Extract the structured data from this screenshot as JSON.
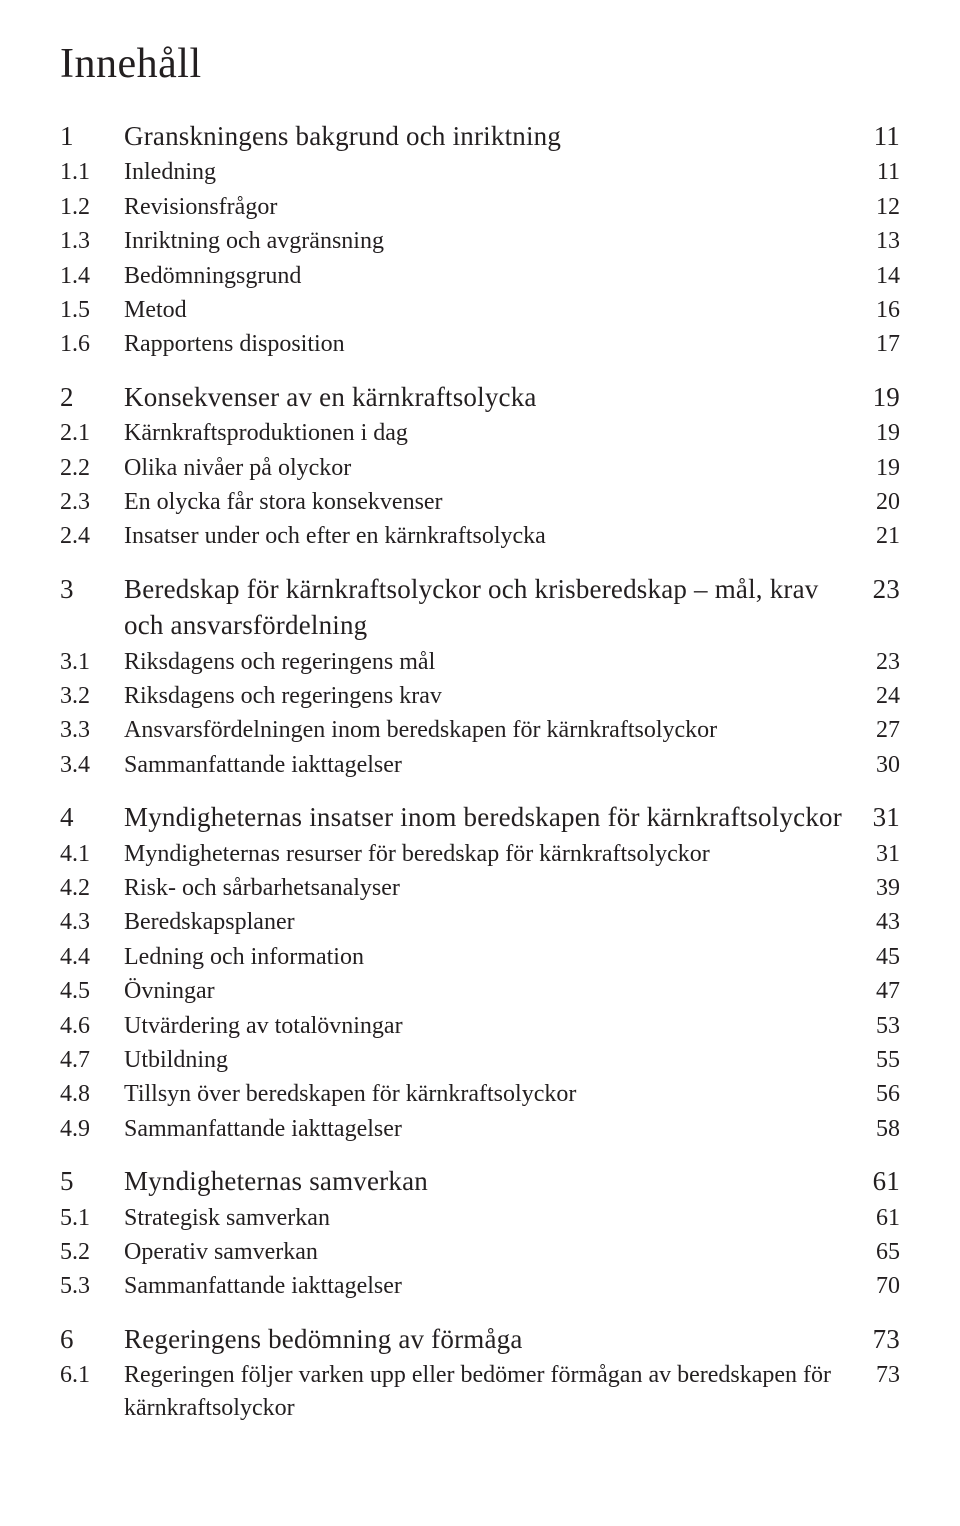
{
  "colors": {
    "text": "#231f20",
    "background": "#ffffff"
  },
  "typography": {
    "title_fontsize_pt": 31,
    "chapter_fontsize_pt": 20,
    "section_fontsize_pt": 18,
    "font_family": "Georgia / humanist serif"
  },
  "title": "Innehåll",
  "entries": [
    {
      "level": "chapter",
      "num": "1",
      "title": "Granskningens bakgrund och inriktning",
      "page": "11"
    },
    {
      "level": "section",
      "num": "1.1",
      "title": "Inledning",
      "page": "11"
    },
    {
      "level": "section",
      "num": "1.2",
      "title": "Revisionsfrågor",
      "page": "12"
    },
    {
      "level": "section",
      "num": "1.3",
      "title": "Inriktning och avgränsning",
      "page": "13"
    },
    {
      "level": "section",
      "num": "1.4",
      "title": "Bedömningsgrund",
      "page": "14"
    },
    {
      "level": "section",
      "num": "1.5",
      "title": "Metod",
      "page": "16"
    },
    {
      "level": "section",
      "num": "1.6",
      "title": "Rapportens disposition",
      "page": "17"
    },
    {
      "level": "chapter",
      "num": "2",
      "title": "Konsekvenser av en kärnkraftsolycka",
      "page": "19"
    },
    {
      "level": "section",
      "num": "2.1",
      "title": "Kärnkraftsproduktionen i dag",
      "page": "19"
    },
    {
      "level": "section",
      "num": "2.2",
      "title": "Olika nivåer på olyckor",
      "page": "19"
    },
    {
      "level": "section",
      "num": "2.3",
      "title": "En olycka får stora konsekvenser",
      "page": "20"
    },
    {
      "level": "section",
      "num": "2.4",
      "title": "Insatser under och efter en kärnkraftsolycka",
      "page": "21"
    },
    {
      "level": "chapter",
      "num": "3",
      "title": "Beredskap för kärnkraftsolyckor och krisberedskap – mål, krav och ansvarsfördelning",
      "page": "23"
    },
    {
      "level": "section",
      "num": "3.1",
      "title": "Riksdagens och regeringens mål",
      "page": "23"
    },
    {
      "level": "section",
      "num": "3.2",
      "title": "Riksdagens och regeringens krav",
      "page": "24"
    },
    {
      "level": "section",
      "num": "3.3",
      "title": "Ansvarsfördelningen inom beredskapen för kärnkraftsolyckor",
      "page": "27"
    },
    {
      "level": "section",
      "num": "3.4",
      "title": "Sammanfattande iakttagelser",
      "page": "30"
    },
    {
      "level": "chapter",
      "num": "4",
      "title": "Myndigheternas insatser inom beredskapen för kärnkraftsolyckor",
      "page": "31"
    },
    {
      "level": "section",
      "num": "4.1",
      "title": "Myndigheternas resurser för beredskap för kärnkraftsolyckor",
      "page": "31"
    },
    {
      "level": "section",
      "num": "4.2",
      "title": "Risk- och sårbarhetsanalyser",
      "page": "39"
    },
    {
      "level": "section",
      "num": "4.3",
      "title": "Beredskapsplaner",
      "page": "43"
    },
    {
      "level": "section",
      "num": "4.4",
      "title": "Ledning och information",
      "page": "45"
    },
    {
      "level": "section",
      "num": "4.5",
      "title": "Övningar",
      "page": "47"
    },
    {
      "level": "section",
      "num": "4.6",
      "title": "Utvärdering av totalövningar",
      "page": "53"
    },
    {
      "level": "section",
      "num": "4.7",
      "title": "Utbildning",
      "page": "55"
    },
    {
      "level": "section",
      "num": "4.8",
      "title": "Tillsyn över beredskapen för kärnkraftsolyckor",
      "page": "56"
    },
    {
      "level": "section",
      "num": "4.9",
      "title": "Sammanfattande iakttagelser",
      "page": "58"
    },
    {
      "level": "chapter",
      "num": "5",
      "title": "Myndigheternas samverkan",
      "page": "61"
    },
    {
      "level": "section",
      "num": "5.1",
      "title": "Strategisk samverkan",
      "page": "61"
    },
    {
      "level": "section",
      "num": "5.2",
      "title": "Operativ samverkan",
      "page": "65"
    },
    {
      "level": "section",
      "num": "5.3",
      "title": "Sammanfattande iakttagelser",
      "page": "70"
    },
    {
      "level": "chapter",
      "num": "6",
      "title": "Regeringens bedömning av förmåga",
      "page": "73"
    },
    {
      "level": "section",
      "num": "6.1",
      "title": "Regeringen följer varken upp eller bedömer förmågan av beredskapen för kärnkraftsolyckor",
      "page": "73"
    }
  ]
}
